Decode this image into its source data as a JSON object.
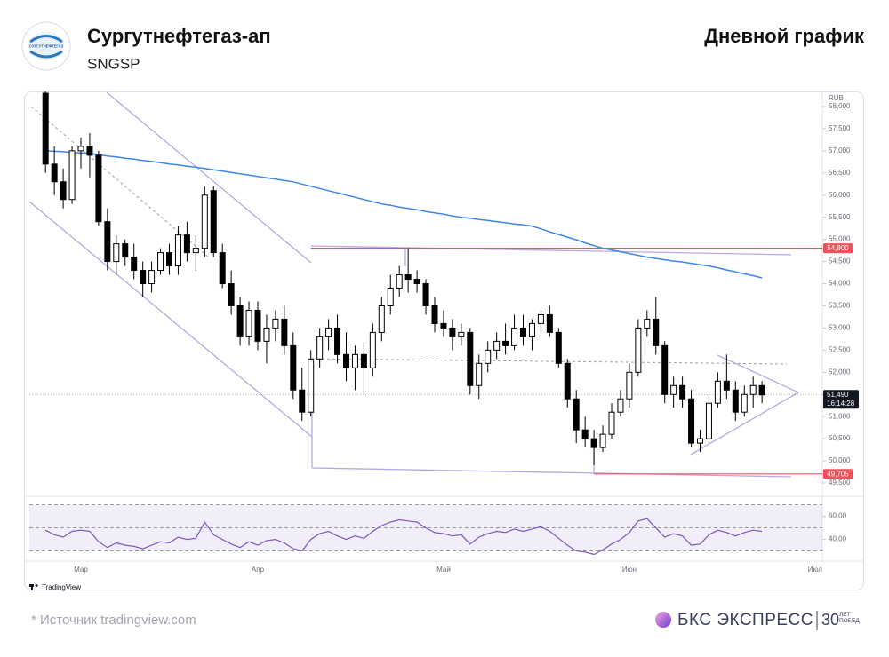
{
  "header": {
    "title": "Сургутнефтегаз-ап",
    "ticker": "SNGSP",
    "chart_kind": "Дневной график",
    "logo_text": "СУРГУТНЕФТЕГАЗ"
  },
  "chart_data": {
    "type": "candlestick",
    "currency": "RUB",
    "brand": "TradingView",
    "categories": [
      null,
      null,
      null,
      null,
      "Мар",
      null,
      null,
      null,
      null,
      null,
      null,
      null,
      null,
      null,
      null,
      null,
      null,
      null,
      null,
      null,
      null,
      null,
      null,
      null,
      "Апр",
      null,
      null,
      null,
      null,
      null,
      null,
      null,
      null,
      null,
      null,
      null,
      null,
      null,
      null,
      null,
      null,
      null,
      null,
      null,
      null,
      "Май",
      null,
      null,
      null,
      null,
      null,
      null,
      null,
      null,
      null,
      null,
      null,
      null,
      null,
      null,
      null,
      null,
      null,
      null,
      null,
      null,
      "Июн",
      null,
      null,
      null,
      null,
      null,
      null,
      null,
      null,
      null,
      null,
      null,
      null,
      null,
      null,
      null,
      null,
      null,
      null,
      null,
      null,
      "Июл"
    ],
    "open": [
      58300,
      56700,
      56300,
      55900,
      57000,
      57100,
      56900,
      55400,
      54500,
      54900,
      54600,
      54300,
      54000,
      54300,
      54700,
      54400,
      55100,
      54700,
      54800,
      56100,
      54700,
      54000,
      53500,
      52800,
      53400,
      52700,
      53000,
      53200,
      52600,
      51600,
      51100,
      52300,
      52800,
      53000,
      52400,
      52100,
      52400,
      52100,
      52900,
      53500,
      53900,
      54200,
      54100,
      54000,
      53500,
      53100,
      53000,
      52800,
      52900,
      51700,
      52200,
      52500,
      52700,
      52600,
      53000,
      52800,
      53100,
      53300,
      52900,
      52200,
      51400,
      50700,
      50500,
      50300,
      50600,
      51100,
      51400,
      52000,
      53000,
      53200,
      52600,
      51500,
      51700,
      51400,
      50400,
      50500,
      51300,
      51800,
      51600,
      51100,
      51500,
      51700,
      null,
      null,
      null,
      null,
      null,
      null
    ],
    "high": [
      58400,
      57100,
      56600,
      57100,
      57300,
      57400,
      57000,
      55700,
      55100,
      55000,
      54900,
      54500,
      54500,
      54800,
      54900,
      55300,
      55400,
      55100,
      56200,
      56200,
      54900,
      54300,
      53700,
      53600,
      53600,
      53300,
      53400,
      53500,
      52900,
      52100,
      52500,
      53000,
      53200,
      53300,
      52900,
      52600,
      52700,
      53100,
      53700,
      54200,
      54400,
      54800,
      54300,
      54100,
      53700,
      53400,
      53200,
      53100,
      53000,
      52400,
      52700,
      52900,
      53100,
      53300,
      53300,
      53200,
      53400,
      53500,
      53000,
      52300,
      51600,
      51000,
      50700,
      50800,
      51300,
      51600,
      52200,
      53200,
      53400,
      53700,
      52700,
      51900,
      51900,
      51600,
      50700,
      51500,
      52000,
      52400,
      51800,
      51700,
      51900,
      51800,
      null,
      null,
      null,
      null,
      null,
      null
    ],
    "low": [
      56500,
      56000,
      55700,
      55800,
      56600,
      56400,
      55300,
      54300,
      54200,
      54400,
      54100,
      53700,
      53800,
      54200,
      54200,
      54200,
      54500,
      54300,
      54600,
      54600,
      53900,
      53300,
      52600,
      52600,
      52500,
      52200,
      52700,
      52400,
      51400,
      50900,
      51000,
      52100,
      52500,
      52200,
      51800,
      51600,
      51500,
      51900,
      52700,
      53300,
      53700,
      53800,
      53800,
      53300,
      52900,
      52800,
      52500,
      52600,
      51500,
      51400,
      52000,
      52300,
      52400,
      52500,
      52600,
      52500,
      52900,
      52800,
      52100,
      51200,
      50400,
      50300,
      49900,
      50200,
      50500,
      51000,
      51200,
      51900,
      52800,
      52400,
      51300,
      51200,
      51200,
      50300,
      50200,
      50400,
      51200,
      51400,
      50900,
      51000,
      51200,
      51300,
      null,
      null,
      null,
      null,
      null,
      null
    ],
    "close": [
      56700,
      56300,
      55900,
      57000,
      57100,
      56900,
      55400,
      54500,
      54900,
      54600,
      54300,
      54000,
      54300,
      54700,
      54400,
      55100,
      54700,
      54800,
      56000,
      54700,
      54000,
      53500,
      52800,
      53400,
      52700,
      53000,
      53200,
      52600,
      51600,
      51100,
      52300,
      52800,
      53000,
      52400,
      52100,
      52400,
      52100,
      52900,
      53500,
      53900,
      54200,
      54100,
      54000,
      53500,
      53100,
      53000,
      52800,
      52900,
      51700,
      52200,
      52500,
      52700,
      52600,
      53000,
      52800,
      53100,
      53300,
      52900,
      52200,
      51400,
      50700,
      50500,
      50300,
      50600,
      51100,
      51400,
      52000,
      53000,
      53200,
      52600,
      51500,
      51700,
      51400,
      50400,
      50500,
      51300,
      51800,
      51600,
      51100,
      51500,
      51700,
      51490,
      null,
      null,
      null,
      null,
      null,
      null
    ],
    "up_color": "#ffffff",
    "down_color": "#000000",
    "ylim": [
      49220,
      58340
    ],
    "yticks": [
      {
        "value": 49500,
        "label": "49,500"
      },
      {
        "value": 50000,
        "label": "50,000"
      },
      {
        "value": 50500,
        "label": "50,500"
      },
      {
        "value": 51000,
        "label": "51,000"
      },
      {
        "value": 51500,
        "label": "51,500"
      },
      {
        "value": 52000,
        "label": "52,000"
      },
      {
        "value": 52500,
        "label": "52,500"
      },
      {
        "value": 53000,
        "label": "53,000"
      },
      {
        "value": 53500,
        "label": "53,500"
      },
      {
        "value": 54000,
        "label": "54,000"
      },
      {
        "value": 54500,
        "label": "54,500"
      },
      {
        "value": 55000,
        "label": "55,000"
      },
      {
        "value": 55500,
        "label": "55,500"
      },
      {
        "value": 56000,
        "label": "56,000"
      },
      {
        "value": 56500,
        "label": "56,500"
      },
      {
        "value": 57000,
        "label": "57,000"
      },
      {
        "value": 57500,
        "label": "57,500"
      },
      {
        "value": 58000,
        "label": "58,000"
      }
    ],
    "overlays": [
      {
        "color": "#3d86ea",
        "values": [
          57000,
          56990,
          56980,
          56960,
          56950,
          56940,
          56910,
          56880,
          56860,
          56830,
          56810,
          56780,
          56760,
          56730,
          56700,
          56680,
          56650,
          56630,
          56600,
          56570,
          56540,
          56510,
          56480,
          56450,
          56420,
          56390,
          56360,
          56330,
          56300,
          56250,
          56200,
          56150,
          56100,
          56050,
          56000,
          55950,
          55900,
          55850,
          55800,
          55770,
          55730,
          55700,
          55670,
          55630,
          55600,
          55570,
          55530,
          55500,
          55480,
          55450,
          55430,
          55400,
          55380,
          55350,
          55330,
          55300,
          55240,
          55170,
          55110,
          55050,
          54990,
          54920,
          54860,
          54800,
          54760,
          54720,
          54680,
          54640,
          54600,
          54570,
          54540,
          54510,
          54490,
          54460,
          54430,
          54400,
          54360,
          54310,
          54270,
          54220,
          54180,
          54130,
          null,
          null,
          null,
          null,
          null,
          null
        ]
      }
    ],
    "price_lines": [
      {
        "value": 54800,
        "label": "54,800",
        "color": "#f0505a"
      },
      {
        "value": 49705,
        "label": "49,705",
        "color": "#f0505a"
      }
    ],
    "last_price": {
      "value": 51490,
      "label": "51,490"
    },
    "countdown": "16:14:28",
    "rsi": {
      "type": "line",
      "color": "#7e57c2",
      "values": [
        48,
        44,
        42,
        47,
        48,
        47,
        38,
        33,
        37,
        35,
        34,
        32,
        35,
        38,
        37,
        42,
        40,
        41,
        55,
        44,
        40,
        36,
        33,
        38,
        35,
        39,
        40,
        37,
        32,
        30,
        40,
        45,
        47,
        43,
        40,
        43,
        41,
        47,
        52,
        55,
        57,
        56,
        55,
        50,
        46,
        45,
        43,
        44,
        36,
        42,
        45,
        47,
        46,
        49,
        47,
        49,
        51,
        47,
        41,
        35,
        30,
        29,
        27,
        31,
        36,
        40,
        46,
        56,
        58,
        50,
        42,
        45,
        43,
        35,
        36,
        44,
        48,
        46,
        43,
        46,
        48,
        47,
        null,
        null,
        null,
        null,
        null,
        null
      ],
      "ylim": [
        22,
        72
      ],
      "yticks": [
        {
          "value": 60,
          "label": "60,00"
        },
        {
          "value": 40,
          "label": "40,00"
        }
      ],
      "band": [
        30,
        70
      ],
      "levels": [
        30,
        50,
        70
      ]
    }
  },
  "footer": {
    "source": "* Источник tradingview.com",
    "brand": "БКС ЭКСПРЕСС",
    "badge_number": "30",
    "badge_text": "ЛЕТ ПОБЕД"
  }
}
